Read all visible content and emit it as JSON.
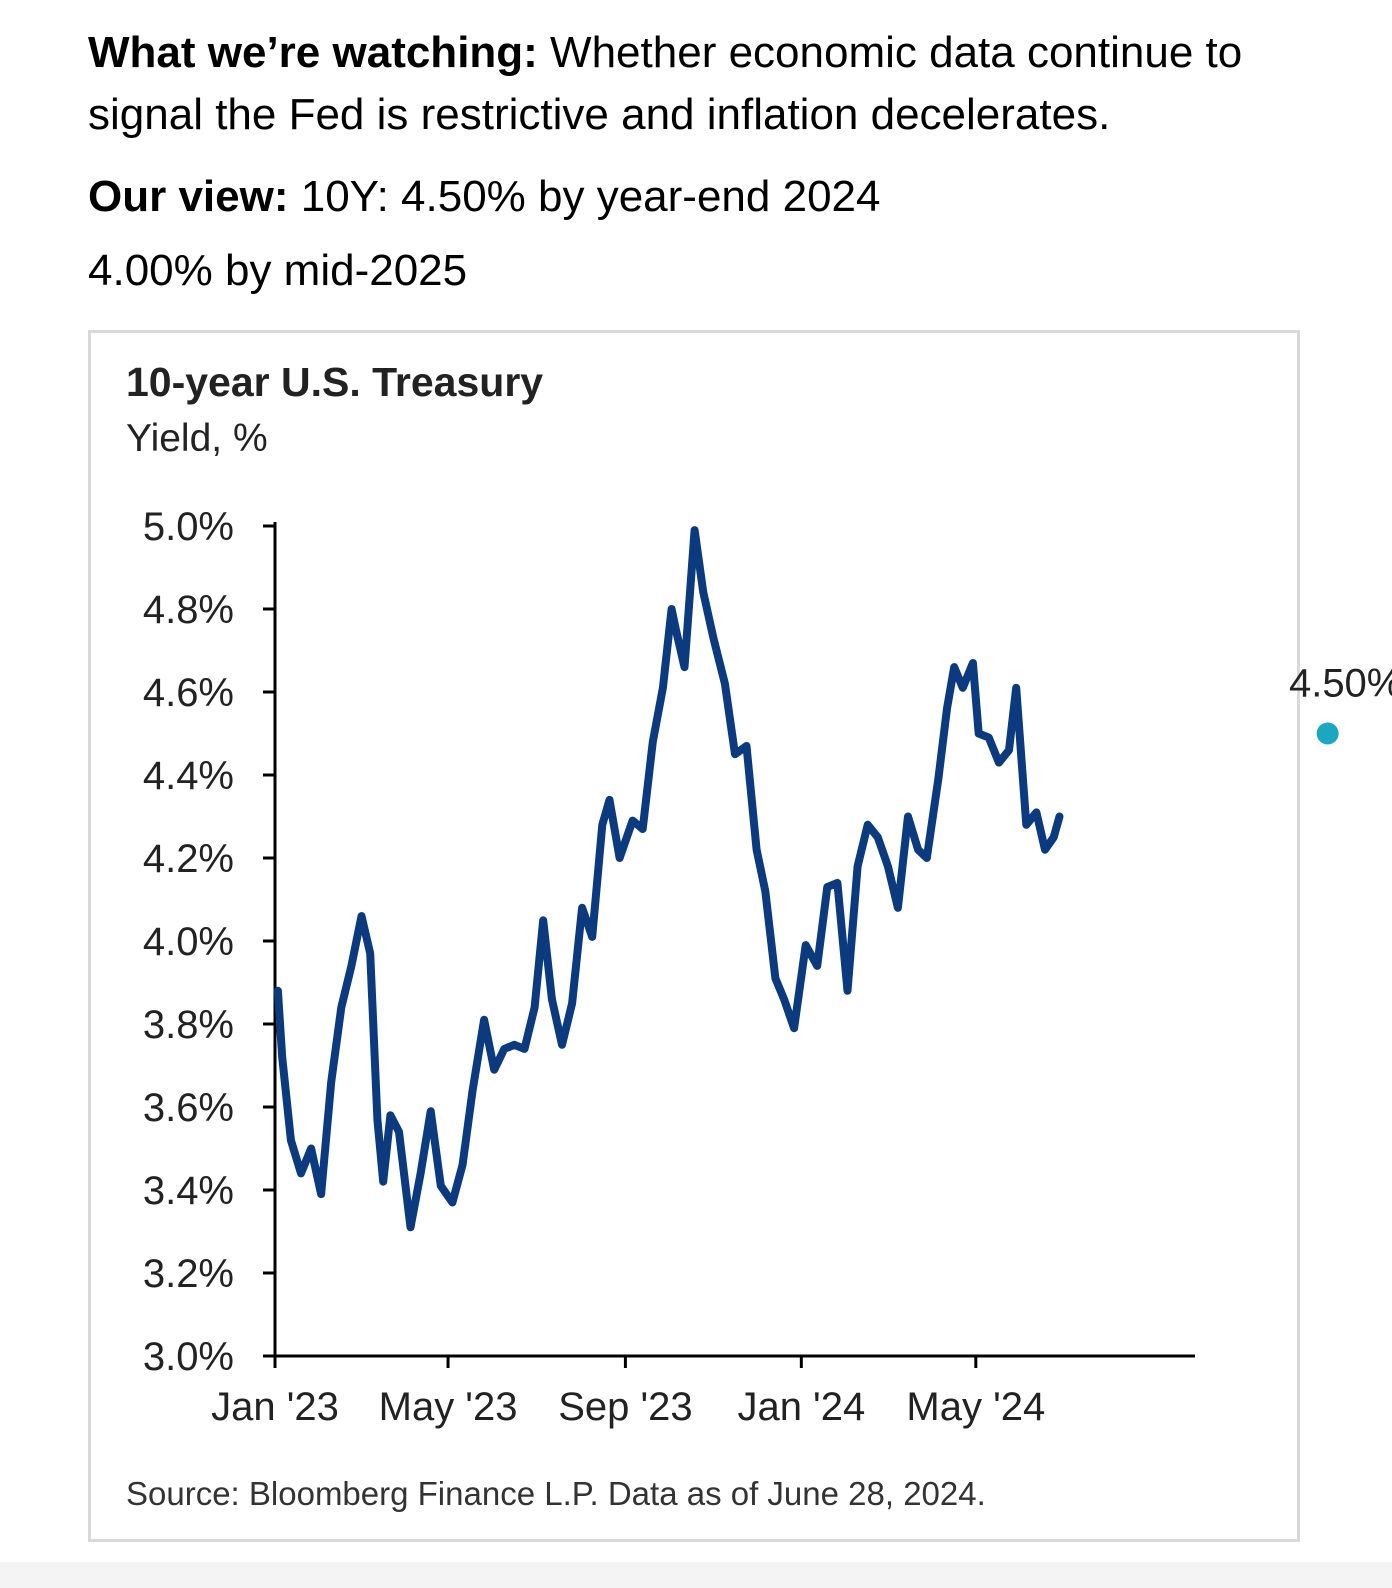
{
  "intro": {
    "watching_label": "What we’re watching:",
    "watching_text": " Whether economic data continue to signal the Fed is restrictive and inflation decelerates.",
    "view_label": "Our view:",
    "view_text": " 10Y: 4.50% by year-end 2024",
    "view_text_2": "4.00% by mid-2025"
  },
  "colors": {
    "line": "#0b3a7e",
    "forecast_dot": "#1aa7bf",
    "axis": "#000000",
    "frame": "#d9d9d9"
  },
  "chart_data": {
    "type": "line",
    "title": "10-year U.S. Treasury",
    "subtitle": "Yield, %",
    "xlabel": "",
    "ylabel": "",
    "ylim": [
      3.0,
      5.0
    ],
    "yticks": [
      3.0,
      3.2,
      3.4,
      3.6,
      3.8,
      4.0,
      4.2,
      4.4,
      4.6,
      4.8,
      5.0
    ],
    "ytick_labels": [
      "3.0%",
      "3.2%",
      "3.4%",
      "3.6%",
      "3.8%",
      "4.0%",
      "4.2%",
      "4.4%",
      "4.6%",
      "4.8%",
      "5.0%"
    ],
    "xlim": [
      "2023-01-01",
      "2024-09-30"
    ],
    "xticks": [
      "2023-01-01",
      "2023-05-01",
      "2023-09-01",
      "2024-01-01",
      "2024-05-01"
    ],
    "xtick_labels": [
      "Jan '23",
      "May '23",
      "Sep '23",
      "Jan '24",
      "May '24"
    ],
    "grid": false,
    "legend": "none",
    "series": [
      {
        "x": [
          "2023-01-03",
          "2023-01-06",
          "2023-01-12",
          "2023-01-19",
          "2023-01-26",
          "2023-02-02",
          "2023-02-09",
          "2023-02-16",
          "2023-02-23",
          "2023-03-02",
          "2023-03-08",
          "2023-03-13",
          "2023-03-17",
          "2023-03-22",
          "2023-03-28",
          "2023-04-05",
          "2023-04-12",
          "2023-04-19",
          "2023-04-26",
          "2023-05-04",
          "2023-05-11",
          "2023-05-18",
          "2023-05-26",
          "2023-06-02",
          "2023-06-09",
          "2023-06-16",
          "2023-06-23",
          "2023-06-30",
          "2023-07-06",
          "2023-07-12",
          "2023-07-19",
          "2023-07-26",
          "2023-08-02",
          "2023-08-09",
          "2023-08-16",
          "2023-08-21",
          "2023-08-28",
          "2023-09-06",
          "2023-09-13",
          "2023-09-20",
          "2023-09-27",
          "2023-10-03",
          "2023-10-06",
          "2023-10-12",
          "2023-10-19",
          "2023-10-25",
          "2023-11-01",
          "2023-11-09",
          "2023-11-16",
          "2023-11-24",
          "2023-12-01",
          "2023-12-07",
          "2023-12-14",
          "2023-12-20",
          "2023-12-27",
          "2024-01-04",
          "2024-01-12",
          "2024-01-19",
          "2024-01-26",
          "2024-02-02",
          "2024-02-09",
          "2024-02-16",
          "2024-02-23",
          "2024-03-01",
          "2024-03-08",
          "2024-03-15",
          "2024-03-22",
          "2024-03-28",
          "2024-04-05",
          "2024-04-11",
          "2024-04-16",
          "2024-04-22",
          "2024-04-29",
          "2024-05-03",
          "2024-05-10",
          "2024-05-17",
          "2024-05-24",
          "2024-05-29",
          "2024-06-05",
          "2024-06-12",
          "2024-06-18",
          "2024-06-24",
          "2024-06-28"
        ],
        "values": [
          3.88,
          3.72,
          3.52,
          3.44,
          3.5,
          3.39,
          3.66,
          3.84,
          3.94,
          4.06,
          3.97,
          3.57,
          3.42,
          3.58,
          3.54,
          3.31,
          3.44,
          3.59,
          3.41,
          3.37,
          3.46,
          3.64,
          3.81,
          3.69,
          3.74,
          3.75,
          3.74,
          3.84,
          4.05,
          3.86,
          3.75,
          3.85,
          4.08,
          4.01,
          4.28,
          4.34,
          4.2,
          4.29,
          4.27,
          4.48,
          4.61,
          4.8,
          4.75,
          4.66,
          4.99,
          4.84,
          4.73,
          4.62,
          4.45,
          4.47,
          4.22,
          4.12,
          3.91,
          3.86,
          3.79,
          3.99,
          3.94,
          4.13,
          4.14,
          3.88,
          4.18,
          4.28,
          4.25,
          4.18,
          4.08,
          4.3,
          4.22,
          4.2,
          4.39,
          4.56,
          4.66,
          4.61,
          4.67,
          4.5,
          4.49,
          4.43,
          4.46,
          4.61,
          4.28,
          4.31,
          4.22,
          4.25,
          4.3
        ]
      }
    ],
    "annotations": [
      {
        "date": "2024-12-31",
        "value": 4.5,
        "label": "4.50%"
      }
    ],
    "source": "Source: Bloomberg Finance L.P. Data as of June 28, 2024."
  }
}
